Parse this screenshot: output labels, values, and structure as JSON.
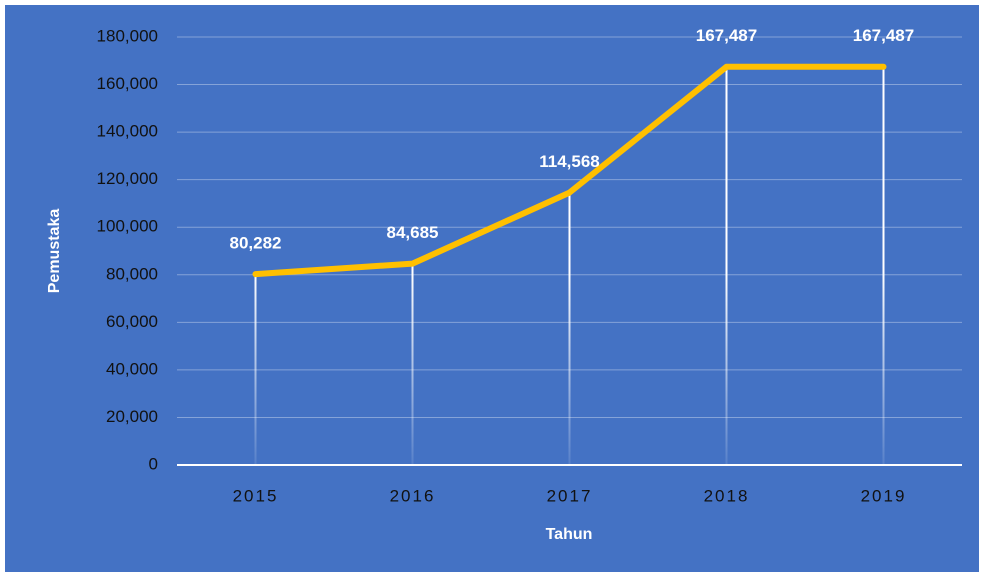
{
  "chart_data": {
    "type": "line",
    "categories": [
      "2015",
      "2016",
      "2017",
      "2018",
      "2019"
    ],
    "series": [
      {
        "name": "Pemustaka",
        "color": "#ffc000",
        "values": [
          80282,
          84685,
          114568,
          167487,
          167487
        ],
        "value_labels": [
          "80,282",
          "84,685",
          "114,568",
          "167,487",
          "167,487"
        ]
      }
    ],
    "x_label": "Tahun",
    "y_label": "Pemustaka",
    "ylim": [
      0,
      180000
    ],
    "yticks": [
      0,
      {
        "value": 20000,
        "label": "20,000"
      },
      {
        "value": 40000,
        "label": "40,000"
      },
      {
        "value": 60000,
        "label": "60,000"
      },
      {
        "value": 80000,
        "label": "80,000"
      },
      {
        "value": 100000,
        "label": "100,000"
      },
      {
        "value": 120000,
        "label": "120,000"
      },
      {
        "value": 140000,
        "label": "140,000"
      },
      {
        "value": 160000,
        "label": "160,000"
      },
      {
        "value": 180000,
        "label": "180,000"
      }
    ],
    "grid": true,
    "drop_lines": true,
    "background": "#4472c4"
  }
}
